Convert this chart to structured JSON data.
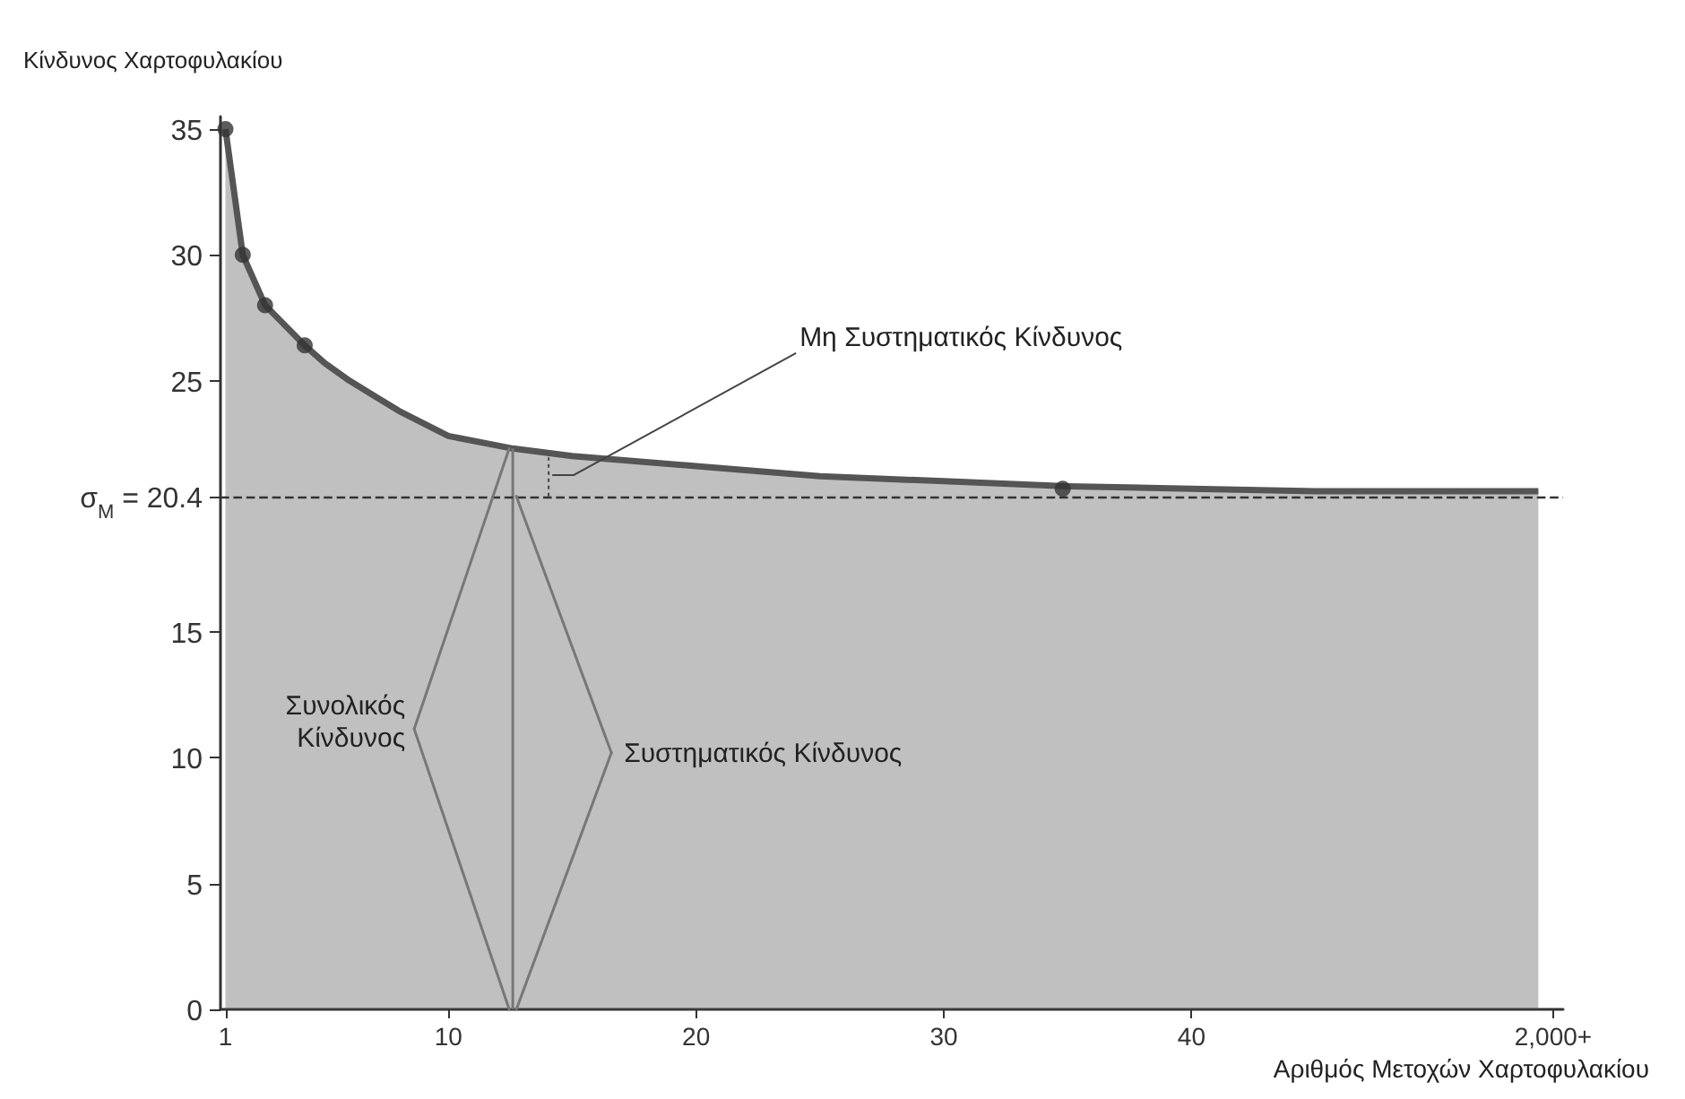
{
  "chart_data": {
    "type": "area",
    "xlabel": "Αριθμός Μετοχών Χαρτοφυλακίου",
    "ylabel": "Κίνδυνος Χαρτοφυλακίου",
    "series": [
      {
        "color": "#555555",
        "x": [
          1,
          1.7,
          2.6,
          3,
          4.2,
          5,
          6,
          7,
          8,
          10,
          12.6,
          15,
          20,
          25,
          30,
          35,
          40,
          45,
          50,
          54
        ],
        "values": [
          35,
          30,
          28,
          27.6,
          26.4,
          25.7,
          25,
          24.4,
          23.8,
          22.8,
          22.3,
          22,
          21.6,
          21.2,
          21,
          20.8,
          20.7,
          20.6,
          20.6,
          20.6
        ]
      },
      {
        "type": "scatter",
        "color": "#333333",
        "x": [
          1,
          1.7,
          2.6,
          4.2,
          34.8
        ],
        "values": [
          35,
          30,
          28,
          26.4,
          20.7
        ]
      },
      {
        "type": "line",
        "color": "#777777",
        "x": [
          12.6,
          12.6
        ],
        "values": [
          0,
          22.3
        ]
      }
    ],
    "xlim": [
      0.8,
      55
    ],
    "xticks": [
      1,
      10,
      20,
      30,
      40,
      {
        "value": 54.6,
        "label": "2,000+"
      }
    ],
    "ylim": [
      0,
      35.5
    ],
    "yticks": [
      0,
      5,
      10,
      15,
      {
        "value": 20.4,
        "label": "σ$_{M}$ = 20.4"
      },
      25,
      30,
      35
    ],
    "ref_lines": [
      {
        "axis": "y",
        "value": 20.4,
        "color": "#333333",
        "line_style": "dashed"
      }
    ],
    "annotations": [
      "Μη Συστηματικός Κίνδυνος",
      {
        "text": "Συνολικός\nΚίνδυνος",
        "x": 12.6,
        "y": 22.3
      },
      {
        "text": "Συστηματικός Κίνδυνος",
        "x": 12.6,
        "y": 20.4
      }
    ],
    "grid": false
  }
}
